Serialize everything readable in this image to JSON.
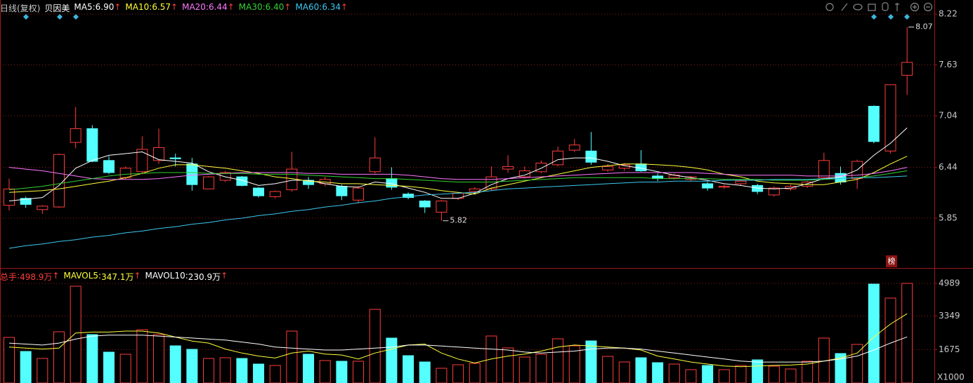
{
  "chart_data": [
    {
      "type": "candlestick",
      "title": "日线(复权)",
      "stock": "贝因美",
      "separator": ": ",
      "arrow": "↑",
      "badge": "榜",
      "up_color": "#ff3c3c",
      "down_color": "#54ffff",
      "ylim": [
        5.28,
        8.27
      ],
      "yticks": [
        {
          "value": 8.22,
          "label": "8.22"
        },
        {
          "value": 7.63,
          "label": "7.63"
        },
        {
          "value": 7.04,
          "label": "7.04"
        },
        {
          "value": 6.44,
          "label": "6.44"
        },
        {
          "value": 5.85,
          "label": "5.85"
        }
      ],
      "grid": true,
      "open": [
        6.0,
        6.08,
        5.95,
        5.98,
        6.73,
        6.89,
        6.52,
        6.32,
        6.39,
        6.52,
        6.55,
        6.48,
        6.19,
        6.29,
        6.33,
        6.2,
        6.1,
        6.18,
        6.29,
        6.25,
        6.22,
        6.06,
        6.39,
        6.31,
        6.13,
        6.05,
        5.92,
        6.08,
        6.16,
        6.19,
        6.42,
        6.33,
        6.39,
        6.47,
        6.64,
        6.63,
        6.41,
        6.43,
        6.48,
        6.34,
        6.32,
        6.3,
        6.25,
        6.21,
        6.25,
        6.23,
        6.12,
        6.19,
        6.22,
        6.32,
        6.37,
        6.31,
        7.15,
        6.63,
        7.51
      ],
      "high": [
        6.31,
        6.1,
        6.0,
        6.6,
        7.14,
        6.93,
        6.57,
        6.45,
        6.8,
        6.89,
        6.6,
        6.55,
        6.34,
        6.4,
        6.34,
        6.21,
        6.17,
        6.62,
        6.33,
        6.33,
        6.24,
        6.22,
        6.79,
        6.44,
        6.15,
        6.06,
        6.06,
        6.15,
        6.21,
        6.45,
        6.58,
        6.45,
        6.52,
        6.68,
        6.77,
        6.85,
        6.48,
        6.49,
        6.64,
        6.37,
        6.37,
        6.34,
        6.27,
        6.24,
        6.3,
        6.25,
        6.22,
        6.24,
        6.28,
        6.61,
        6.45,
        6.53,
        7.16,
        7.4,
        8.07
      ],
      "low": [
        5.94,
        5.97,
        5.9,
        5.97,
        6.66,
        6.5,
        6.36,
        6.3,
        6.36,
        6.48,
        6.45,
        6.17,
        6.19,
        6.27,
        6.22,
        6.09,
        6.08,
        6.16,
        6.19,
        6.22,
        6.06,
        6.02,
        6.37,
        6.18,
        6.07,
        5.91,
        5.82,
        6.06,
        6.14,
        6.17,
        6.38,
        6.31,
        6.37,
        6.45,
        6.62,
        6.47,
        6.39,
        6.4,
        6.39,
        6.28,
        6.3,
        6.28,
        6.17,
        6.19,
        6.23,
        6.13,
        6.1,
        6.17,
        6.2,
        6.3,
        6.24,
        6.19,
        6.72,
        6.6,
        7.28
      ],
      "close": [
        6.19,
        6.01,
        5.99,
        6.59,
        6.89,
        6.51,
        6.38,
        6.43,
        6.65,
        6.67,
        6.54,
        6.24,
        6.33,
        6.38,
        6.23,
        6.11,
        6.16,
        6.42,
        6.24,
        6.3,
        6.11,
        6.2,
        6.55,
        6.21,
        6.09,
        5.98,
        6.05,
        6.14,
        6.19,
        6.33,
        6.45,
        6.4,
        6.49,
        6.63,
        6.7,
        6.5,
        6.45,
        6.47,
        6.4,
        6.31,
        6.35,
        6.33,
        6.2,
        6.22,
        6.28,
        6.16,
        6.2,
        6.22,
        6.27,
        6.52,
        6.27,
        6.51,
        6.74,
        7.4,
        7.66
      ],
      "high_label": 8.07,
      "low_label": 5.82,
      "series": [
        {
          "name": "MA5",
          "legend_value": "6.90",
          "color": "#ffffff",
          "values": [
            6.05,
            6.07,
            6.09,
            6.23,
            6.43,
            6.52,
            6.58,
            6.6,
            6.62,
            6.53,
            6.51,
            6.49,
            6.39,
            6.33,
            6.29,
            6.23,
            6.25,
            6.29,
            6.29,
            6.25,
            6.22,
            6.21,
            6.27,
            6.25,
            6.2,
            6.15,
            6.08,
            6.08,
            6.14,
            6.24,
            6.31,
            6.35,
            6.43,
            6.53,
            6.55,
            6.55,
            6.51,
            6.46,
            6.43,
            6.39,
            6.35,
            6.32,
            6.29,
            6.25,
            6.23,
            6.2,
            6.19,
            6.2,
            6.25,
            6.31,
            6.33,
            6.41,
            6.58,
            6.72,
            6.9
          ]
        },
        {
          "name": "MA10",
          "legend_value": "6.57",
          "color": "#ffff3c",
          "values": [
            6.15,
            6.16,
            6.17,
            6.19,
            6.22,
            6.25,
            6.28,
            6.32,
            6.37,
            6.43,
            6.47,
            6.47,
            6.45,
            6.43,
            6.4,
            6.37,
            6.33,
            6.31,
            6.28,
            6.27,
            6.25,
            6.25,
            6.24,
            6.23,
            6.22,
            6.2,
            6.17,
            6.15,
            6.13,
            6.2,
            6.24,
            6.28,
            6.32,
            6.36,
            6.4,
            6.44,
            6.46,
            6.48,
            6.48,
            6.47,
            6.46,
            6.44,
            6.41,
            6.36,
            6.33,
            6.28,
            6.26,
            6.25,
            6.24,
            6.24,
            6.27,
            6.3,
            6.38,
            6.48,
            6.57
          ]
        },
        {
          "name": "MA20",
          "legend_value": "6.44",
          "color": "#ff78ff",
          "values": [
            6.44,
            6.42,
            6.4,
            6.37,
            6.34,
            6.31,
            6.3,
            6.3,
            6.3,
            6.31,
            6.33,
            6.35,
            6.36,
            6.37,
            6.38,
            6.38,
            6.38,
            6.38,
            6.37,
            6.37,
            6.36,
            6.36,
            6.36,
            6.36,
            6.35,
            6.33,
            6.31,
            6.3,
            6.3,
            6.3,
            6.31,
            6.32,
            6.33,
            6.34,
            6.35,
            6.36,
            6.37,
            6.38,
            6.38,
            6.38,
            6.38,
            6.38,
            6.37,
            6.36,
            6.35,
            6.35,
            6.35,
            6.35,
            6.34,
            6.34,
            6.34,
            6.35,
            6.37,
            6.4,
            6.44
          ]
        },
        {
          "name": "MA30",
          "legend_value": "6.40",
          "color": "#32d232",
          "values": [
            6.18,
            6.2,
            6.22,
            6.25,
            6.28,
            6.31,
            6.34,
            6.36,
            6.37,
            6.38,
            6.38,
            6.38,
            6.37,
            6.37,
            6.37,
            6.36,
            6.36,
            6.36,
            6.35,
            6.34,
            6.33,
            6.32,
            6.31,
            6.31,
            6.3,
            6.29,
            6.28,
            6.27,
            6.27,
            6.27,
            6.28,
            6.29,
            6.3,
            6.31,
            6.32,
            6.32,
            6.32,
            6.32,
            6.32,
            6.31,
            6.31,
            6.31,
            6.31,
            6.3,
            6.3,
            6.3,
            6.29,
            6.29,
            6.29,
            6.3,
            6.31,
            6.32,
            6.34,
            6.37,
            6.4
          ]
        },
        {
          "name": "MA60",
          "legend_value": "6.34",
          "color": "#3cc8f0",
          "values": [
            5.5,
            5.53,
            5.55,
            5.58,
            5.6,
            5.63,
            5.65,
            5.68,
            5.7,
            5.73,
            5.75,
            5.78,
            5.8,
            5.83,
            5.85,
            5.88,
            5.9,
            5.93,
            5.95,
            5.98,
            6.0,
            6.03,
            6.05,
            6.08,
            6.1,
            6.12,
            6.13,
            6.14,
            6.15,
            6.17,
            6.19,
            6.2,
            6.21,
            6.22,
            6.23,
            6.24,
            6.25,
            6.26,
            6.27,
            6.27,
            6.28,
            6.28,
            6.28,
            6.29,
            6.29,
            6.29,
            6.3,
            6.3,
            6.3,
            6.31,
            6.31,
            6.32,
            6.32,
            6.33,
            6.34
          ]
        }
      ]
    },
    {
      "type": "volume",
      "unit_label": "X1000",
      "separator": ": ",
      "arrow": "↑",
      "ylim": [
        0,
        5480
      ],
      "yticks": [
        4989,
        3349,
        1675
      ],
      "grid": true,
      "values": [
        2284,
        1581,
        1230,
        2565,
        4849,
        2424,
        1546,
        1441,
        2670,
        2424,
        1862,
        1687,
        1230,
        1265,
        1230,
        949,
        878,
        2600,
        1441,
        1124,
        1089,
        1089,
        3689,
        2249,
        1370,
        1054,
        738,
        914,
        984,
        2354,
        1757,
        1300,
        1441,
        2214,
        1862,
        2108,
        1335,
        1054,
        1265,
        1019,
        949,
        668,
        878,
        668,
        878,
        1160,
        843,
        703,
        1089,
        2249,
        1476,
        1933,
        4954,
        4252,
        4989
      ],
      "legend": [
        {
          "name": "总手",
          "legend_value": "498.9万",
          "color": "#ff3c3c"
        },
        {
          "name": "MAVOL5",
          "legend_value": "347.1万",
          "color": "#ffff3c"
        },
        {
          "name": "MAVOL10",
          "legend_value": "230.9万",
          "color": "#ffffff"
        }
      ],
      "series": [
        {
          "name": "MAVOL5",
          "color": "#ffff3c",
          "values": [
            1800,
            1750,
            1700,
            1750,
            2500,
            2550,
            2550,
            2600,
            2600,
            2500,
            2300,
            2100,
            2000,
            1700,
            1500,
            1350,
            1250,
            1500,
            1600,
            1450,
            1400,
            1200,
            1500,
            1700,
            1900,
            1950,
            1500,
            1200,
            1000,
            1200,
            1350,
            1450,
            1600,
            1800,
            1900,
            1850,
            1800,
            1750,
            1650,
            1350,
            1200,
            1050,
            950,
            850,
            820,
            850,
            880,
            900,
            950,
            1100,
            1250,
            1500,
            2300,
            2950,
            3471
          ]
        },
        {
          "name": "MAVOL10",
          "color": "#ffffff",
          "values": [
            2000,
            1950,
            1900,
            2000,
            2200,
            2350,
            2400,
            2400,
            2400,
            2350,
            2300,
            2250,
            2200,
            2150,
            2050,
            1950,
            1800,
            1750,
            1700,
            1650,
            1650,
            1700,
            1750,
            1800,
            1900,
            1900,
            1850,
            1800,
            1750,
            1700,
            1650,
            1550,
            1500,
            1550,
            1600,
            1700,
            1750,
            1750,
            1700,
            1600,
            1500,
            1400,
            1300,
            1200,
            1100,
            1050,
            1050,
            1050,
            1050,
            1100,
            1200,
            1350,
            1650,
            2000,
            2309
          ]
        }
      ]
    }
  ]
}
